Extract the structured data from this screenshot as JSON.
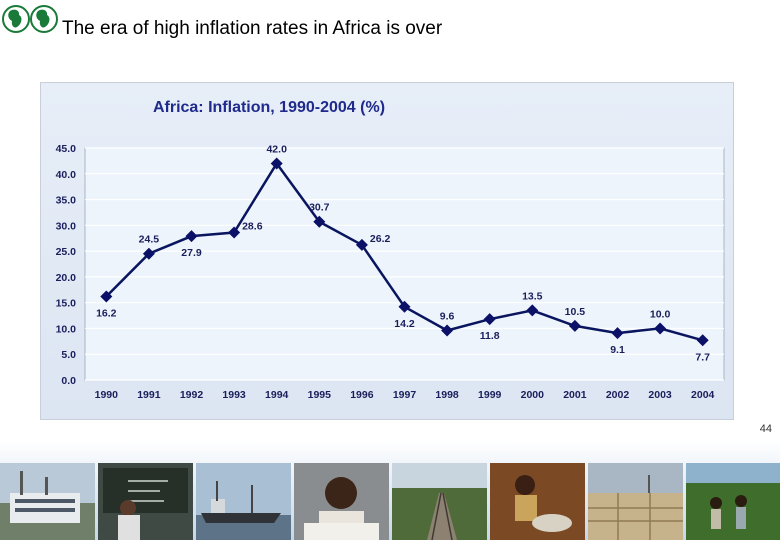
{
  "slide": {
    "title": "The era of high inflation rates in Africa is over",
    "page_number": "44"
  },
  "colors": {
    "line": "#0a1560",
    "marker": "#0a1166",
    "plot_bg": "#eef4fb",
    "grid": "#ffffff",
    "title_text": "#1f2a8c"
  },
  "chart_data": {
    "type": "line",
    "title": "Africa: Inflation, 1990-2004 (%)",
    "xlabel": "",
    "ylabel": "",
    "categories": [
      "1990",
      "1991",
      "1992",
      "1993",
      "1994",
      "1995",
      "1996",
      "1997",
      "1998",
      "1999",
      "2000",
      "2001",
      "2002",
      "2003",
      "2004"
    ],
    "series": [
      {
        "values": [
          16.2,
          24.5,
          27.9,
          28.6,
          42.0,
          30.7,
          26.2,
          14.2,
          9.6,
          11.8,
          13.5,
          10.5,
          9.1,
          10.0,
          7.7
        ]
      }
    ],
    "data_labels": [
      "16.2",
      "24.5",
      "27.9",
      "28.6",
      "42.0",
      "30.7",
      "26.2",
      "14.2",
      "9.6",
      "11.8",
      "13.5",
      "10.5",
      "9.1",
      "10.0",
      "7.7"
    ],
    "label_position": [
      "below",
      "above",
      "below",
      "right",
      "above",
      "above",
      "right",
      "below",
      "above",
      "below",
      "above",
      "above",
      "below",
      "above",
      "below"
    ],
    "ylim": [
      0,
      45
    ],
    "yticks": [
      0,
      5,
      10,
      15,
      20,
      25,
      30,
      35,
      40,
      45
    ],
    "ytick_labels": [
      "0.0",
      "5.0",
      "10.0",
      "15.0",
      "20.0",
      "25.0",
      "30.0",
      "35.0",
      "40.0",
      "45.0"
    ],
    "grid": true,
    "legend": "none"
  },
  "photos": [
    "building-photo",
    "classroom-blackboard-photo",
    "cargo-ship-photo",
    "child-writing-photo",
    "railway-photo",
    "woman-cooking-photo",
    "salt-pans-photo",
    "farmers-field-photo"
  ]
}
